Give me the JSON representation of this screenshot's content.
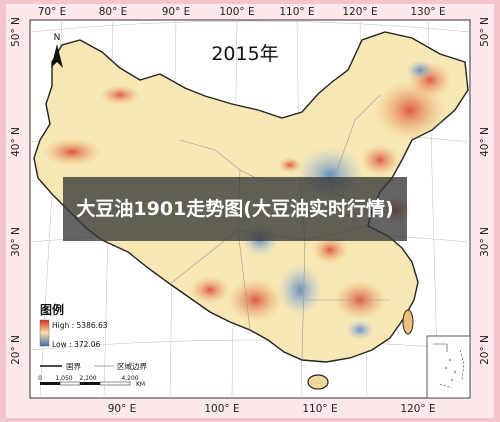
{
  "map": {
    "year_title": "2015年",
    "north_letter": "N",
    "top_longitudes": [
      "70° E",
      "80° E",
      "90° E",
      "100° E",
      "110° E",
      "120° E",
      "130° E"
    ],
    "bottom_longitudes": [
      "90° E",
      "100° E",
      "110° E",
      "120° E"
    ],
    "latitudes": [
      "50° N",
      "40° N",
      "30° N",
      "20° N"
    ],
    "legend": {
      "title": "图例",
      "high": "High : 5386.63",
      "low": "Low : 372.06",
      "line_national": "国界",
      "line_regional": "区域边界",
      "scale_ticks": [
        "0",
        "1,050",
        "2,100",
        "4,200"
      ],
      "scale_unit": "KM"
    }
  },
  "banner": {
    "text": "大豆油1901走势图(大豆油实时行情)"
  }
}
